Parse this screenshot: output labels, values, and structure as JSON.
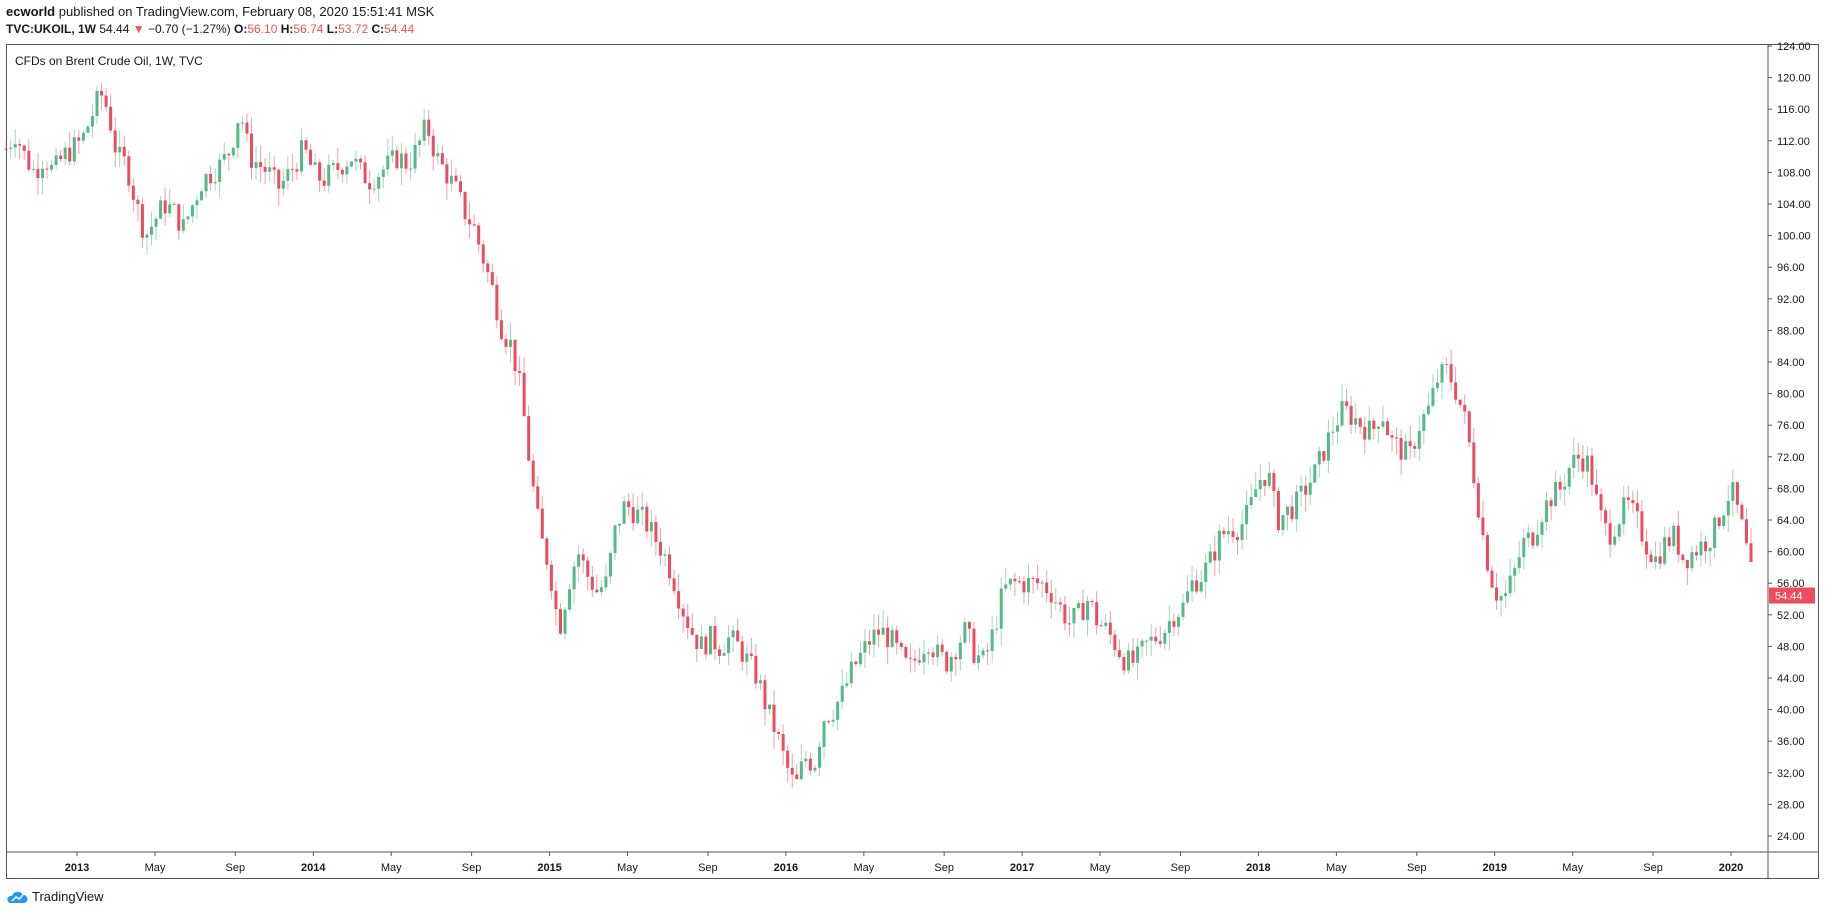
{
  "header": {
    "publisher": "ecworld",
    "published_text": "published on TradingView.com, February 08, 2020 15:51:41 MSK",
    "symbol": "TVC:UKOIL, 1W",
    "last": "54.44",
    "change_arrow": "▼",
    "change": "−0.70 (−1.27%)",
    "o_label": "O:",
    "o_value": "56.10",
    "h_label": "H:",
    "h_value": "56.74",
    "l_label": "L:",
    "l_value": "53.72",
    "c_label": "C:",
    "c_value": "54.44"
  },
  "footer": {
    "brand": "TradingView"
  },
  "colors": {
    "up": "#26a69a",
    "down": "#ef5350",
    "up_candle": "#53b987",
    "down_candle": "#eb4d5c",
    "frame": "#555555"
  },
  "chart_data": {
    "type": "candlestick-weekly",
    "title": "CFDs on Brent Crude Oil, 1W, TVC",
    "price_label": "54.44",
    "ylim": [
      22,
      125
    ],
    "y_ticks": [
      "124.00",
      "120.00",
      "116.00",
      "112.00",
      "108.00",
      "104.00",
      "100.00",
      "96.00",
      "92.00",
      "88.00",
      "84.00",
      "80.00",
      "76.00",
      "72.00",
      "68.00",
      "64.00",
      "60.00",
      "56.00",
      "52.00",
      "48.00",
      "44.00",
      "40.00",
      "36.00",
      "32.00",
      "28.00",
      "24.00"
    ],
    "x_ticks": [
      {
        "label": "2013",
        "t": 2013.0,
        "year": true
      },
      {
        "label": "May",
        "t": 2013.33
      },
      {
        "label": "Sep",
        "t": 2013.67
      },
      {
        "label": "2014",
        "t": 2014.0,
        "year": true
      },
      {
        "label": "May",
        "t": 2014.33
      },
      {
        "label": "Sep",
        "t": 2014.67
      },
      {
        "label": "2015",
        "t": 2015.0,
        "year": true
      },
      {
        "label": "May",
        "t": 2015.33
      },
      {
        "label": "Sep",
        "t": 2015.67
      },
      {
        "label": "2016",
        "t": 2016.0,
        "year": true
      },
      {
        "label": "May",
        "t": 2016.33
      },
      {
        "label": "Sep",
        "t": 2016.67
      },
      {
        "label": "2017",
        "t": 2017.0,
        "year": true
      },
      {
        "label": "May",
        "t": 2017.33
      },
      {
        "label": "Sep",
        "t": 2017.67
      },
      {
        "label": "2018",
        "t": 2018.0,
        "year": true
      },
      {
        "label": "May",
        "t": 2018.33
      },
      {
        "label": "Sep",
        "t": 2018.67
      },
      {
        "label": "2019",
        "t": 2019.0,
        "year": true
      },
      {
        "label": "May",
        "t": 2019.33
      },
      {
        "label": "Sep",
        "t": 2019.67
      },
      {
        "label": "2020",
        "t": 2020.0,
        "year": true
      }
    ],
    "x_range": [
      2012.7,
      2020.15
    ],
    "close_path": [
      [
        2012.7,
        111
      ],
      [
        2012.74,
        113
      ],
      [
        2012.78,
        110
      ],
      [
        2012.82,
        108
      ],
      [
        2012.86,
        110
      ],
      [
        2012.9,
        108
      ],
      [
        2012.94,
        110
      ],
      [
        2012.98,
        111
      ],
      [
        2013.02,
        112
      ],
      [
        2013.06,
        115
      ],
      [
        2013.1,
        118
      ],
      [
        2013.13,
        116
      ],
      [
        2013.17,
        110
      ],
      [
        2013.21,
        109
      ],
      [
        2013.25,
        104
      ],
      [
        2013.29,
        100
      ],
      [
        2013.33,
        102
      ],
      [
        2013.37,
        104
      ],
      [
        2013.41,
        103
      ],
      [
        2013.45,
        101
      ],
      [
        2013.49,
        104
      ],
      [
        2013.53,
        107
      ],
      [
        2013.57,
        108
      ],
      [
        2013.61,
        109
      ],
      [
        2013.65,
        111
      ],
      [
        2013.69,
        116
      ],
      [
        2013.73,
        110
      ],
      [
        2013.77,
        109
      ],
      [
        2013.81,
        108
      ],
      [
        2013.85,
        106
      ],
      [
        2013.88,
        107
      ],
      [
        2013.92,
        109
      ],
      [
        2013.96,
        111
      ],
      [
        2014.0,
        108
      ],
      [
        2014.04,
        107
      ],
      [
        2014.08,
        108
      ],
      [
        2014.12,
        109
      ],
      [
        2014.16,
        110
      ],
      [
        2014.2,
        108
      ],
      [
        2014.24,
        107
      ],
      [
        2014.28,
        108
      ],
      [
        2014.32,
        109
      ],
      [
        2014.36,
        110
      ],
      [
        2014.4,
        109
      ],
      [
        2014.44,
        111
      ],
      [
        2014.48,
        114
      ],
      [
        2014.52,
        110
      ],
      [
        2014.56,
        108
      ],
      [
        2014.6,
        106
      ],
      [
        2014.64,
        103
      ],
      [
        2014.68,
        101
      ],
      [
        2014.72,
        97
      ],
      [
        2014.76,
        93
      ],
      [
        2014.8,
        88
      ],
      [
        2014.84,
        86
      ],
      [
        2014.88,
        80
      ],
      [
        2014.92,
        70
      ],
      [
        2014.96,
        62
      ],
      [
        2015.0,
        58
      ],
      [
        2015.04,
        50
      ],
      [
        2015.08,
        56
      ],
      [
        2015.12,
        60
      ],
      [
        2015.16,
        57
      ],
      [
        2015.2,
        55
      ],
      [
        2015.24,
        56
      ],
      [
        2015.28,
        63
      ],
      [
        2015.32,
        66
      ],
      [
        2015.36,
        65
      ],
      [
        2015.4,
        64
      ],
      [
        2015.44,
        62
      ],
      [
        2015.48,
        60
      ],
      [
        2015.52,
        57
      ],
      [
        2015.56,
        53
      ],
      [
        2015.6,
        50
      ],
      [
        2015.64,
        48
      ],
      [
        2015.68,
        49
      ],
      [
        2015.72,
        48
      ],
      [
        2015.76,
        49
      ],
      [
        2015.8,
        48
      ],
      [
        2015.84,
        46
      ],
      [
        2015.88,
        44
      ],
      [
        2015.92,
        40
      ],
      [
        2015.96,
        37
      ],
      [
        2016.0,
        33
      ],
      [
        2016.04,
        30
      ],
      [
        2016.08,
        34
      ],
      [
        2016.12,
        33
      ],
      [
        2016.16,
        39
      ],
      [
        2016.2,
        40
      ],
      [
        2016.24,
        42
      ],
      [
        2016.28,
        45
      ],
      [
        2016.32,
        47
      ],
      [
        2016.36,
        49
      ],
      [
        2016.4,
        50
      ],
      [
        2016.44,
        49
      ],
      [
        2016.48,
        47
      ],
      [
        2016.52,
        45
      ],
      [
        2016.56,
        47
      ],
      [
        2016.6,
        49
      ],
      [
        2016.64,
        47
      ],
      [
        2016.68,
        46
      ],
      [
        2016.72,
        48
      ],
      [
        2016.76,
        50
      ],
      [
        2016.8,
        47
      ],
      [
        2016.84,
        46
      ],
      [
        2016.88,
        50
      ],
      [
        2016.92,
        55
      ],
      [
        2016.96,
        56
      ],
      [
        2017.0,
        56
      ],
      [
        2017.04,
        56
      ],
      [
        2017.08,
        56
      ],
      [
        2017.12,
        55
      ],
      [
        2017.16,
        53
      ],
      [
        2017.2,
        51
      ],
      [
        2017.24,
        52
      ],
      [
        2017.28,
        54
      ],
      [
        2017.32,
        51
      ],
      [
        2017.36,
        50
      ],
      [
        2017.4,
        48
      ],
      [
        2017.44,
        46
      ],
      [
        2017.48,
        46
      ],
      [
        2017.52,
        48
      ],
      [
        2017.56,
        49
      ],
      [
        2017.6,
        50
      ],
      [
        2017.64,
        52
      ],
      [
        2017.68,
        53
      ],
      [
        2017.72,
        56
      ],
      [
        2017.76,
        57
      ],
      [
        2017.8,
        59
      ],
      [
        2017.84,
        62
      ],
      [
        2017.88,
        63
      ],
      [
        2017.92,
        63
      ],
      [
        2017.96,
        65
      ],
      [
        2018.0,
        69
      ],
      [
        2018.04,
        70
      ],
      [
        2018.08,
        64
      ],
      [
        2018.12,
        65
      ],
      [
        2018.16,
        66
      ],
      [
        2018.2,
        68
      ],
      [
        2018.24,
        70
      ],
      [
        2018.28,
        73
      ],
      [
        2018.32,
        76
      ],
      [
        2018.36,
        78
      ],
      [
        2018.4,
        77
      ],
      [
        2018.44,
        76
      ],
      [
        2018.48,
        75
      ],
      [
        2018.52,
        78
      ],
      [
        2018.56,
        74
      ],
      [
        2018.6,
        73
      ],
      [
        2018.64,
        72
      ],
      [
        2018.68,
        76
      ],
      [
        2018.72,
        78
      ],
      [
        2018.76,
        82
      ],
      [
        2018.8,
        83
      ],
      [
        2018.84,
        80
      ],
      [
        2018.88,
        76
      ],
      [
        2018.92,
        68
      ],
      [
        2018.96,
        60
      ],
      [
        2019.0,
        55
      ],
      [
        2019.04,
        54
      ],
      [
        2019.08,
        57
      ],
      [
        2019.12,
        61
      ],
      [
        2019.16,
        62
      ],
      [
        2019.2,
        65
      ],
      [
        2019.24,
        67
      ],
      [
        2019.28,
        68
      ],
      [
        2019.32,
        71
      ],
      [
        2019.36,
        72
      ],
      [
        2019.4,
        71
      ],
      [
        2019.44,
        65
      ],
      [
        2019.48,
        62
      ],
      [
        2019.52,
        64
      ],
      [
        2019.56,
        66
      ],
      [
        2019.6,
        64
      ],
      [
        2019.64,
        61
      ],
      [
        2019.68,
        59
      ],
      [
        2019.72,
        61
      ],
      [
        2019.76,
        62
      ],
      [
        2019.8,
        59
      ],
      [
        2019.84,
        60
      ],
      [
        2019.88,
        61
      ],
      [
        2019.92,
        62
      ],
      [
        2019.96,
        65
      ],
      [
        2020.0,
        68
      ],
      [
        2020.04,
        64
      ],
      [
        2020.08,
        58
      ],
      [
        2020.1,
        54.44
      ]
    ]
  }
}
